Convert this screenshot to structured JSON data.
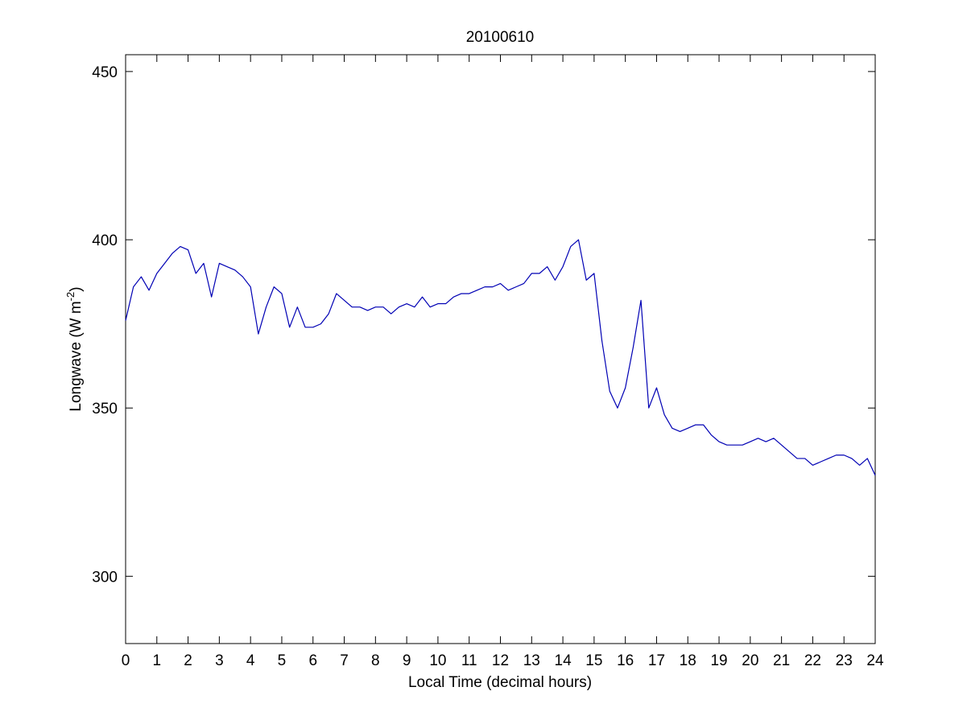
{
  "chart_data": {
    "type": "line",
    "title": "20100610",
    "xlabel": "Local Time (decimal hours)",
    "ylabel_parts": [
      "Longwave (W m",
      "-2",
      ")"
    ],
    "xlim": [
      0,
      24
    ],
    "ylim": [
      280,
      455
    ],
    "xticks": [
      0,
      1,
      2,
      3,
      4,
      5,
      6,
      7,
      8,
      9,
      10,
      11,
      12,
      13,
      14,
      15,
      16,
      17,
      18,
      19,
      20,
      21,
      22,
      23,
      24
    ],
    "yticks": [
      300,
      350,
      400,
      450
    ],
    "grid": false,
    "x": [
      0,
      0.25,
      0.5,
      0.75,
      1,
      1.25,
      1.5,
      1.75,
      2,
      2.25,
      2.5,
      2.75,
      3,
      3.25,
      3.5,
      3.75,
      4,
      4.25,
      4.5,
      4.75,
      5,
      5.25,
      5.5,
      5.75,
      6,
      6.25,
      6.5,
      6.75,
      7,
      7.25,
      7.5,
      7.75,
      8,
      8.25,
      8.5,
      8.75,
      9,
      9.25,
      9.5,
      9.75,
      10,
      10.25,
      10.5,
      10.75,
      11,
      11.25,
      11.5,
      11.75,
      12,
      12.25,
      12.5,
      12.75,
      13,
      13.25,
      13.5,
      13.75,
      14,
      14.25,
      14.5,
      14.75,
      15,
      15.25,
      15.5,
      15.75,
      16,
      16.25,
      16.5,
      16.75,
      17,
      17.25,
      17.5,
      17.75,
      18,
      18.25,
      18.5,
      18.75,
      19,
      19.25,
      19.5,
      19.75,
      20,
      20.25,
      20.5,
      20.75,
      21,
      21.25,
      21.5,
      21.75,
      22,
      22.25,
      22.5,
      22.75,
      23,
      23.25,
      23.5,
      23.75,
      24
    ],
    "series": [
      {
        "color": "#0000b4",
        "values": [
          376,
          386,
          389,
          385,
          390,
          393,
          396,
          398,
          397,
          390,
          393,
          383,
          393,
          392,
          391,
          389,
          386,
          372,
          380,
          386,
          384,
          374,
          380,
          374,
          374,
          375,
          378,
          384,
          382,
          380,
          380,
          379,
          380,
          380,
          378,
          380,
          381,
          380,
          383,
          380,
          381,
          381,
          383,
          384,
          384,
          385,
          386,
          386,
          387,
          385,
          386,
          387,
          390,
          390,
          392,
          388,
          392,
          398,
          400,
          388,
          390,
          370,
          355,
          350,
          356,
          368,
          382,
          350,
          356,
          348,
          344,
          343,
          344,
          345,
          345,
          342,
          340,
          339,
          339,
          339,
          340,
          341,
          340,
          341,
          339,
          337,
          335,
          335,
          333,
          334,
          335,
          336,
          336,
          335,
          333,
          335,
          330
        ]
      }
    ]
  }
}
